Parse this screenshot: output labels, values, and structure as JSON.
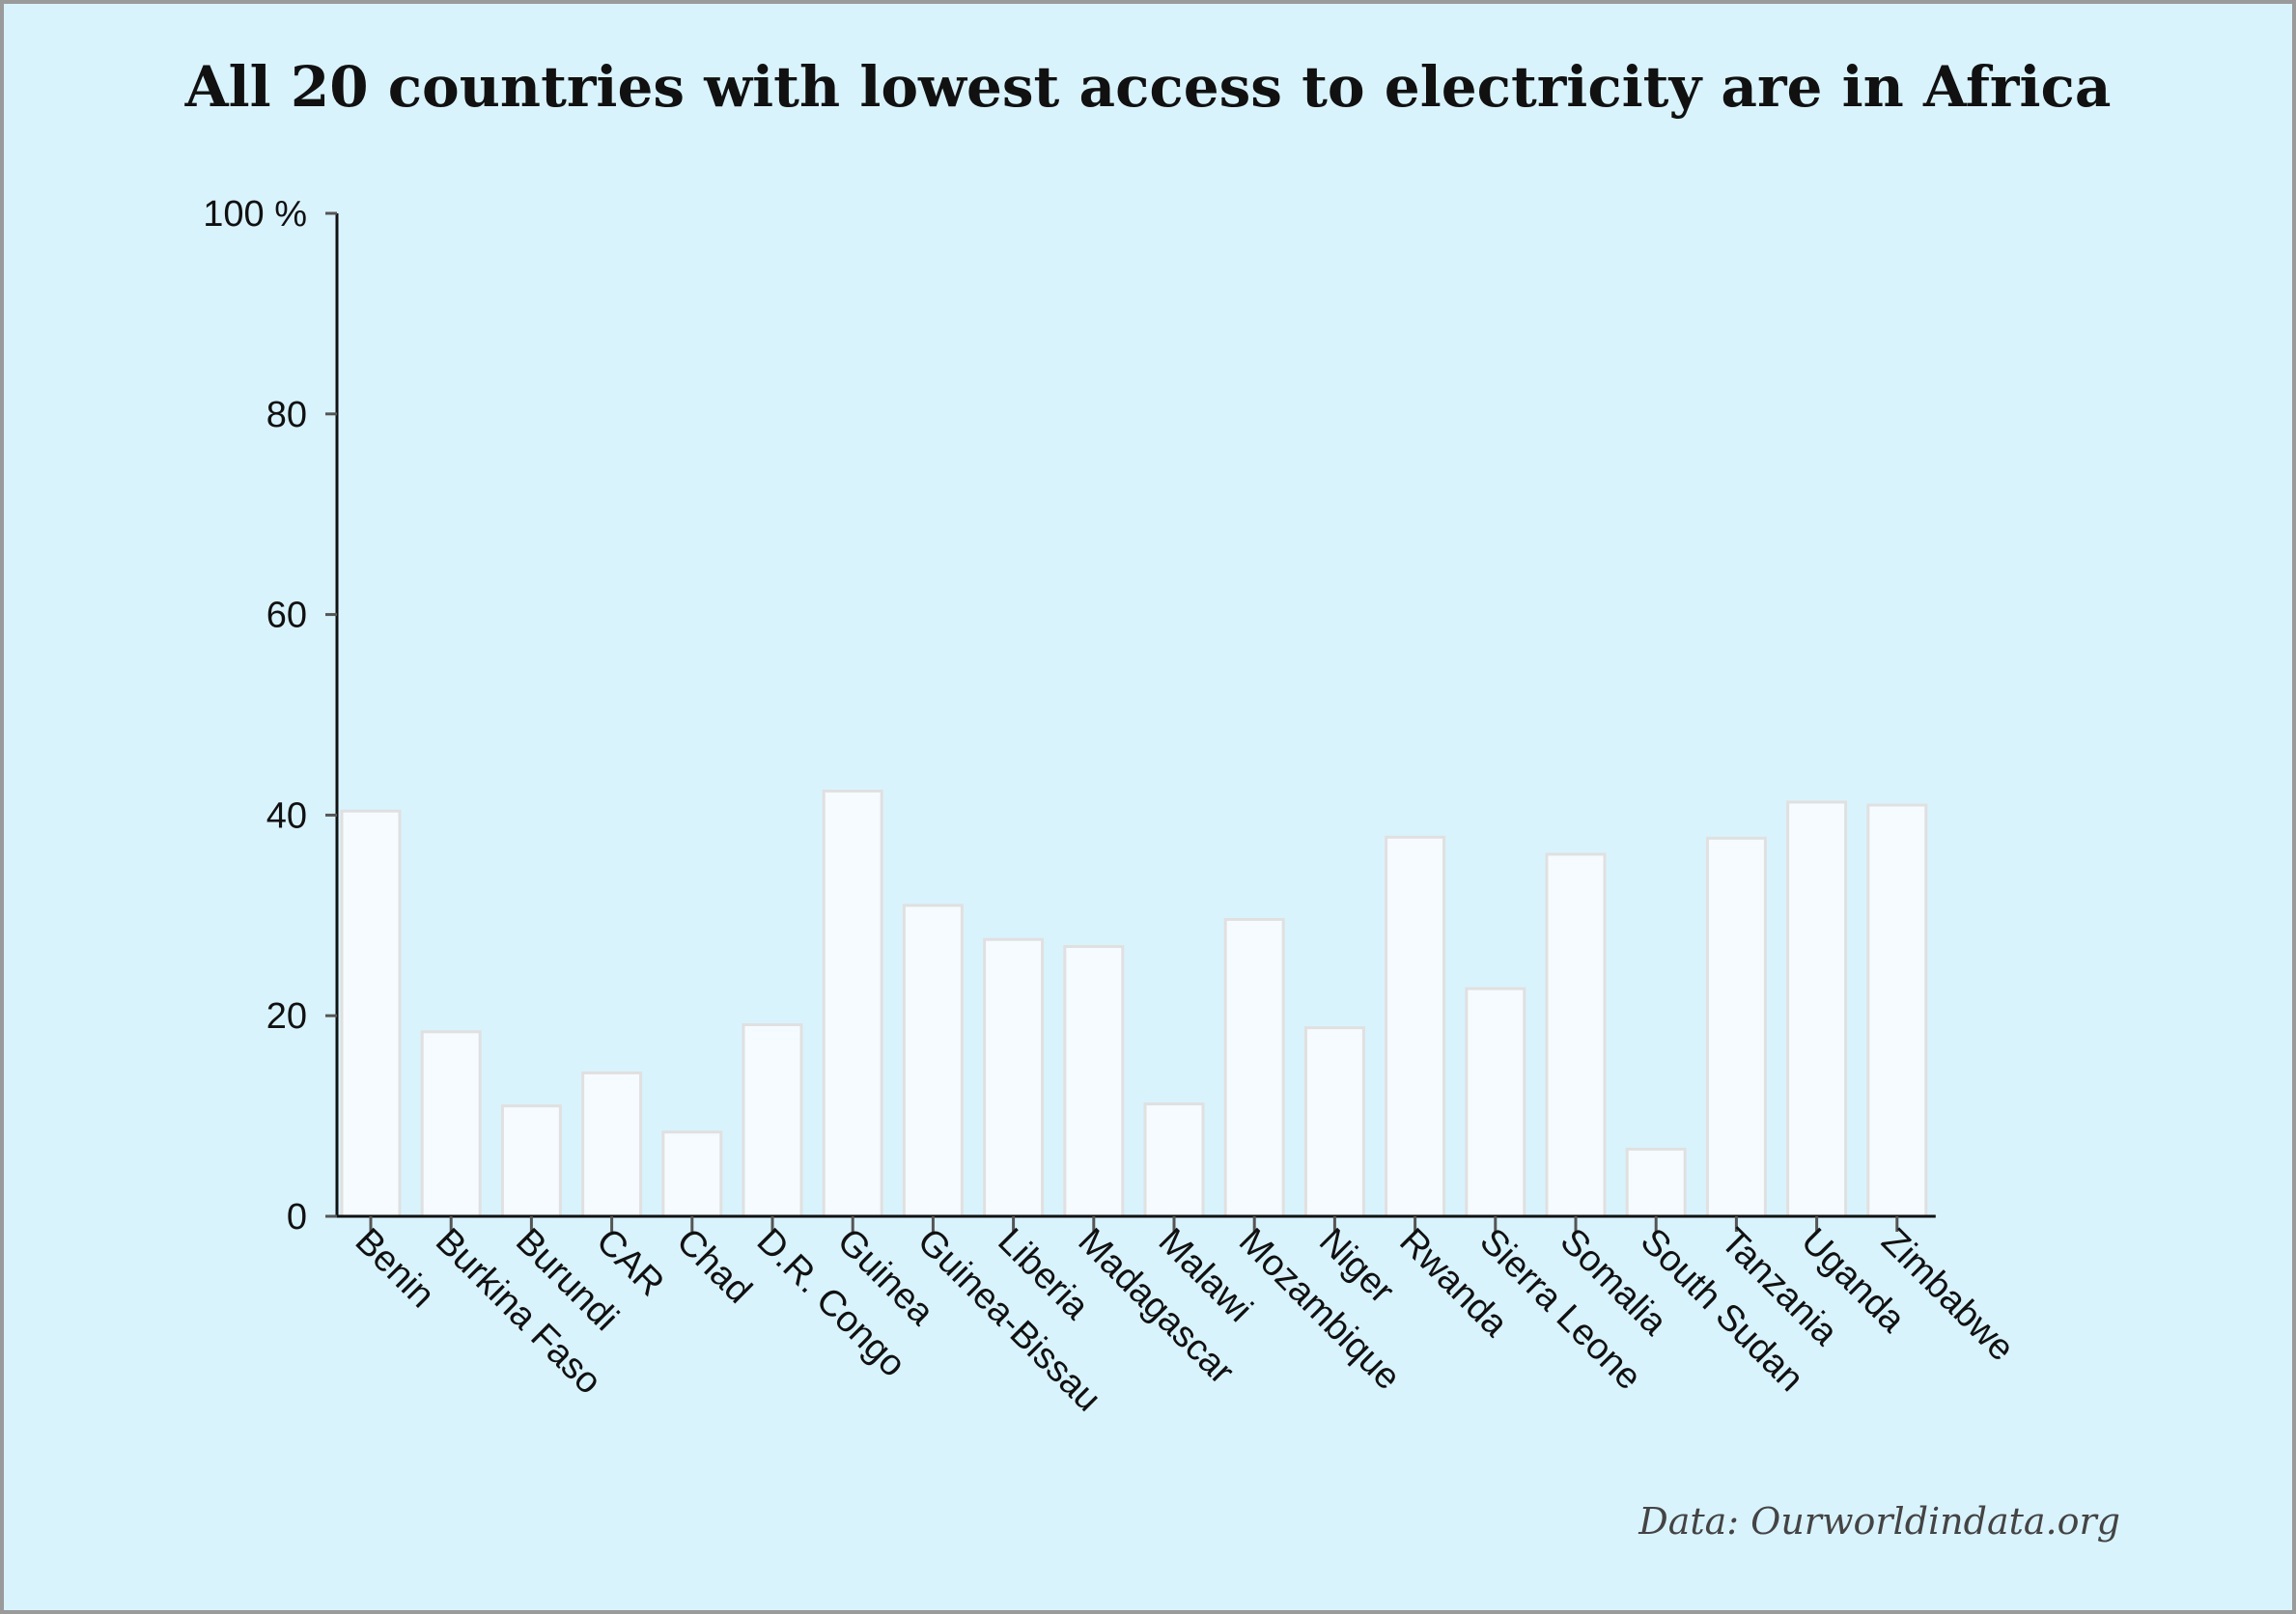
{
  "chart_data": {
    "type": "bar",
    "title": "All 20 countries with lowest access to electricity are in Africa",
    "xlabel": "",
    "ylabel": "",
    "ylim": [
      0,
      100
    ],
    "yticks": [
      "0",
      "20",
      "40",
      "60",
      "80",
      "100 %"
    ],
    "grid": false,
    "categories": [
      "Benin",
      "Burkina Faso",
      "Burundi",
      "CAR",
      "Chad",
      "D.R. Congo",
      "Guinea",
      "Guinea-Bissau",
      "Liberia",
      "Madagascar",
      "Malawi",
      "Mozambique",
      "Niger",
      "Rwanda",
      "Sierra Leone",
      "Somalia",
      "South Sudan",
      "Tanzania",
      "Uganda",
      "Zimbabwe"
    ],
    "values": [
      40.4,
      18.4,
      11.0,
      14.3,
      8.4,
      19.1,
      42.4,
      31.0,
      27.6,
      26.9,
      11.2,
      29.6,
      18.8,
      37.8,
      22.7,
      36.1,
      6.7,
      37.7,
      41.3,
      41.0
    ],
    "colors": {
      "bar_fill": "#f5fbff",
      "bar_stroke": "#e0e0e0",
      "background": "#d9f3fd"
    }
  },
  "source": "Data: Ourworldindata.org"
}
